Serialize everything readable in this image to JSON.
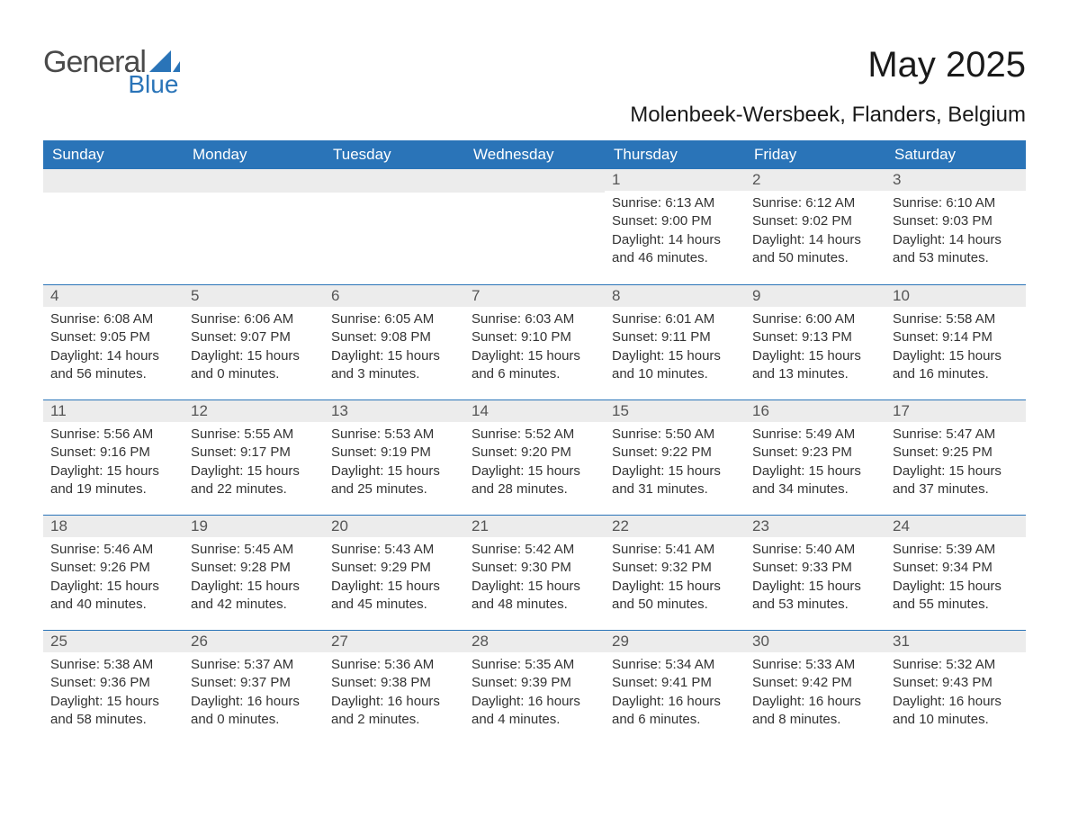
{
  "brand": {
    "line1": "General",
    "line2": "Blue"
  },
  "title": "May 2025",
  "subtitle": "Molenbeek-Wersbeek, Flanders, Belgium",
  "colors": {
    "accent": "#2a74b8",
    "header_text": "#ffffff",
    "daynum_bg": "#ececec",
    "text": "#333333",
    "muted": "#555555",
    "background": "#ffffff"
  },
  "weekdays": [
    "Sunday",
    "Monday",
    "Tuesday",
    "Wednesday",
    "Thursday",
    "Friday",
    "Saturday"
  ],
  "weeks": [
    [
      null,
      null,
      null,
      null,
      {
        "n": "1",
        "sr": "Sunrise: 6:13 AM",
        "ss": "Sunset: 9:00 PM",
        "d1": "Daylight: 14 hours",
        "d2": "and 46 minutes."
      },
      {
        "n": "2",
        "sr": "Sunrise: 6:12 AM",
        "ss": "Sunset: 9:02 PM",
        "d1": "Daylight: 14 hours",
        "d2": "and 50 minutes."
      },
      {
        "n": "3",
        "sr": "Sunrise: 6:10 AM",
        "ss": "Sunset: 9:03 PM",
        "d1": "Daylight: 14 hours",
        "d2": "and 53 minutes."
      }
    ],
    [
      {
        "n": "4",
        "sr": "Sunrise: 6:08 AM",
        "ss": "Sunset: 9:05 PM",
        "d1": "Daylight: 14 hours",
        "d2": "and 56 minutes."
      },
      {
        "n": "5",
        "sr": "Sunrise: 6:06 AM",
        "ss": "Sunset: 9:07 PM",
        "d1": "Daylight: 15 hours",
        "d2": "and 0 minutes."
      },
      {
        "n": "6",
        "sr": "Sunrise: 6:05 AM",
        "ss": "Sunset: 9:08 PM",
        "d1": "Daylight: 15 hours",
        "d2": "and 3 minutes."
      },
      {
        "n": "7",
        "sr": "Sunrise: 6:03 AM",
        "ss": "Sunset: 9:10 PM",
        "d1": "Daylight: 15 hours",
        "d2": "and 6 minutes."
      },
      {
        "n": "8",
        "sr": "Sunrise: 6:01 AM",
        "ss": "Sunset: 9:11 PM",
        "d1": "Daylight: 15 hours",
        "d2": "and 10 minutes."
      },
      {
        "n": "9",
        "sr": "Sunrise: 6:00 AM",
        "ss": "Sunset: 9:13 PM",
        "d1": "Daylight: 15 hours",
        "d2": "and 13 minutes."
      },
      {
        "n": "10",
        "sr": "Sunrise: 5:58 AM",
        "ss": "Sunset: 9:14 PM",
        "d1": "Daylight: 15 hours",
        "d2": "and 16 minutes."
      }
    ],
    [
      {
        "n": "11",
        "sr": "Sunrise: 5:56 AM",
        "ss": "Sunset: 9:16 PM",
        "d1": "Daylight: 15 hours",
        "d2": "and 19 minutes."
      },
      {
        "n": "12",
        "sr": "Sunrise: 5:55 AM",
        "ss": "Sunset: 9:17 PM",
        "d1": "Daylight: 15 hours",
        "d2": "and 22 minutes."
      },
      {
        "n": "13",
        "sr": "Sunrise: 5:53 AM",
        "ss": "Sunset: 9:19 PM",
        "d1": "Daylight: 15 hours",
        "d2": "and 25 minutes."
      },
      {
        "n": "14",
        "sr": "Sunrise: 5:52 AM",
        "ss": "Sunset: 9:20 PM",
        "d1": "Daylight: 15 hours",
        "d2": "and 28 minutes."
      },
      {
        "n": "15",
        "sr": "Sunrise: 5:50 AM",
        "ss": "Sunset: 9:22 PM",
        "d1": "Daylight: 15 hours",
        "d2": "and 31 minutes."
      },
      {
        "n": "16",
        "sr": "Sunrise: 5:49 AM",
        "ss": "Sunset: 9:23 PM",
        "d1": "Daylight: 15 hours",
        "d2": "and 34 minutes."
      },
      {
        "n": "17",
        "sr": "Sunrise: 5:47 AM",
        "ss": "Sunset: 9:25 PM",
        "d1": "Daylight: 15 hours",
        "d2": "and 37 minutes."
      }
    ],
    [
      {
        "n": "18",
        "sr": "Sunrise: 5:46 AM",
        "ss": "Sunset: 9:26 PM",
        "d1": "Daylight: 15 hours",
        "d2": "and 40 minutes."
      },
      {
        "n": "19",
        "sr": "Sunrise: 5:45 AM",
        "ss": "Sunset: 9:28 PM",
        "d1": "Daylight: 15 hours",
        "d2": "and 42 minutes."
      },
      {
        "n": "20",
        "sr": "Sunrise: 5:43 AM",
        "ss": "Sunset: 9:29 PM",
        "d1": "Daylight: 15 hours",
        "d2": "and 45 minutes."
      },
      {
        "n": "21",
        "sr": "Sunrise: 5:42 AM",
        "ss": "Sunset: 9:30 PM",
        "d1": "Daylight: 15 hours",
        "d2": "and 48 minutes."
      },
      {
        "n": "22",
        "sr": "Sunrise: 5:41 AM",
        "ss": "Sunset: 9:32 PM",
        "d1": "Daylight: 15 hours",
        "d2": "and 50 minutes."
      },
      {
        "n": "23",
        "sr": "Sunrise: 5:40 AM",
        "ss": "Sunset: 9:33 PM",
        "d1": "Daylight: 15 hours",
        "d2": "and 53 minutes."
      },
      {
        "n": "24",
        "sr": "Sunrise: 5:39 AM",
        "ss": "Sunset: 9:34 PM",
        "d1": "Daylight: 15 hours",
        "d2": "and 55 minutes."
      }
    ],
    [
      {
        "n": "25",
        "sr": "Sunrise: 5:38 AM",
        "ss": "Sunset: 9:36 PM",
        "d1": "Daylight: 15 hours",
        "d2": "and 58 minutes."
      },
      {
        "n": "26",
        "sr": "Sunrise: 5:37 AM",
        "ss": "Sunset: 9:37 PM",
        "d1": "Daylight: 16 hours",
        "d2": "and 0 minutes."
      },
      {
        "n": "27",
        "sr": "Sunrise: 5:36 AM",
        "ss": "Sunset: 9:38 PM",
        "d1": "Daylight: 16 hours",
        "d2": "and 2 minutes."
      },
      {
        "n": "28",
        "sr": "Sunrise: 5:35 AM",
        "ss": "Sunset: 9:39 PM",
        "d1": "Daylight: 16 hours",
        "d2": "and 4 minutes."
      },
      {
        "n": "29",
        "sr": "Sunrise: 5:34 AM",
        "ss": "Sunset: 9:41 PM",
        "d1": "Daylight: 16 hours",
        "d2": "and 6 minutes."
      },
      {
        "n": "30",
        "sr": "Sunrise: 5:33 AM",
        "ss": "Sunset: 9:42 PM",
        "d1": "Daylight: 16 hours",
        "d2": "and 8 minutes."
      },
      {
        "n": "31",
        "sr": "Sunrise: 5:32 AM",
        "ss": "Sunset: 9:43 PM",
        "d1": "Daylight: 16 hours",
        "d2": "and 10 minutes."
      }
    ]
  ]
}
